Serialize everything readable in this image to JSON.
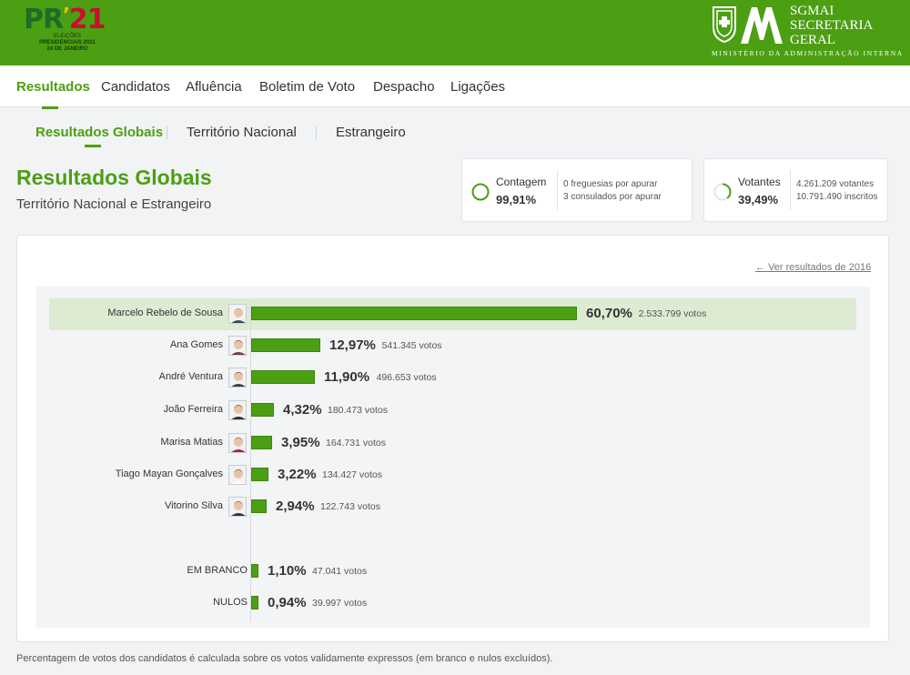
{
  "header": {
    "logo": {
      "pr": "PR",
      "num": "21",
      "line1": "ELEIÇÕES",
      "line2": "PRESIDENCIAIS 2021",
      "line3": "24 DE JANEIRO"
    },
    "org": {
      "line1": "SGMAI",
      "line2": "SECRETARIA",
      "line3": "GERAL",
      "ministry": "MINISTÉRIO DA ADMINISTRAÇÃO INTERNA"
    },
    "brand_color": "#4c9f13"
  },
  "nav": [
    "Resultados",
    "Candidatos",
    "Afluência",
    "Boletim de Voto",
    "Despacho",
    "Ligações"
  ],
  "subnav": [
    "Resultados Globais",
    "Território Nacional",
    "Estrangeiro"
  ],
  "page": {
    "title": "Resultados Globais",
    "subtitle": "Território Nacional e Estrangeiro"
  },
  "stats": {
    "contagem": {
      "label": "Contagem",
      "value": "99,91%",
      "fraction": 0.9991,
      "detail1": "0 freguesias por apurar",
      "detail2": "3 consulados por apurar"
    },
    "votantes": {
      "label": "Votantes",
      "value": "39,49%",
      "fraction": 0.3949,
      "detail1": "4.261.209 votantes",
      "detail2": "10.791.490 inscritos"
    }
  },
  "previous_link": "Ver resultados de 2016",
  "results": [
    {
      "name": "Marcelo Rebelo de Sousa",
      "pct": "60,70%",
      "value": 60.7,
      "votes": "2.533.799 votos"
    },
    {
      "name": "Ana Gomes",
      "pct": "12,97%",
      "value": 12.97,
      "votes": "541.345 votos"
    },
    {
      "name": "André Ventura",
      "pct": "11,90%",
      "value": 11.9,
      "votes": "496.653 votos"
    },
    {
      "name": "João Ferreira",
      "pct": "4,32%",
      "value": 4.32,
      "votes": "180.473 votos"
    },
    {
      "name": "Marisa Matias",
      "pct": "3,95%",
      "value": 3.95,
      "votes": "164.731 votos"
    },
    {
      "name": "Tiago Mayan Gonçalves",
      "pct": "3,22%",
      "value": 3.22,
      "votes": "134.427 votos"
    },
    {
      "name": "Vitorino Silva",
      "pct": "2,94%",
      "value": 2.94,
      "votes": "122.743 votos"
    }
  ],
  "others": [
    {
      "name": "EM BRANCO",
      "pct": "1,10%",
      "value": 1.1,
      "votes": "47.041 votos"
    },
    {
      "name": "NULOS",
      "pct": "0,94%",
      "value": 0.94,
      "votes": "39.997 votos"
    }
  ],
  "footnote": "Percentagem de votos dos candidatos é calculada sobre os votos validamente expressos (em branco e nulos excluídos)."
}
